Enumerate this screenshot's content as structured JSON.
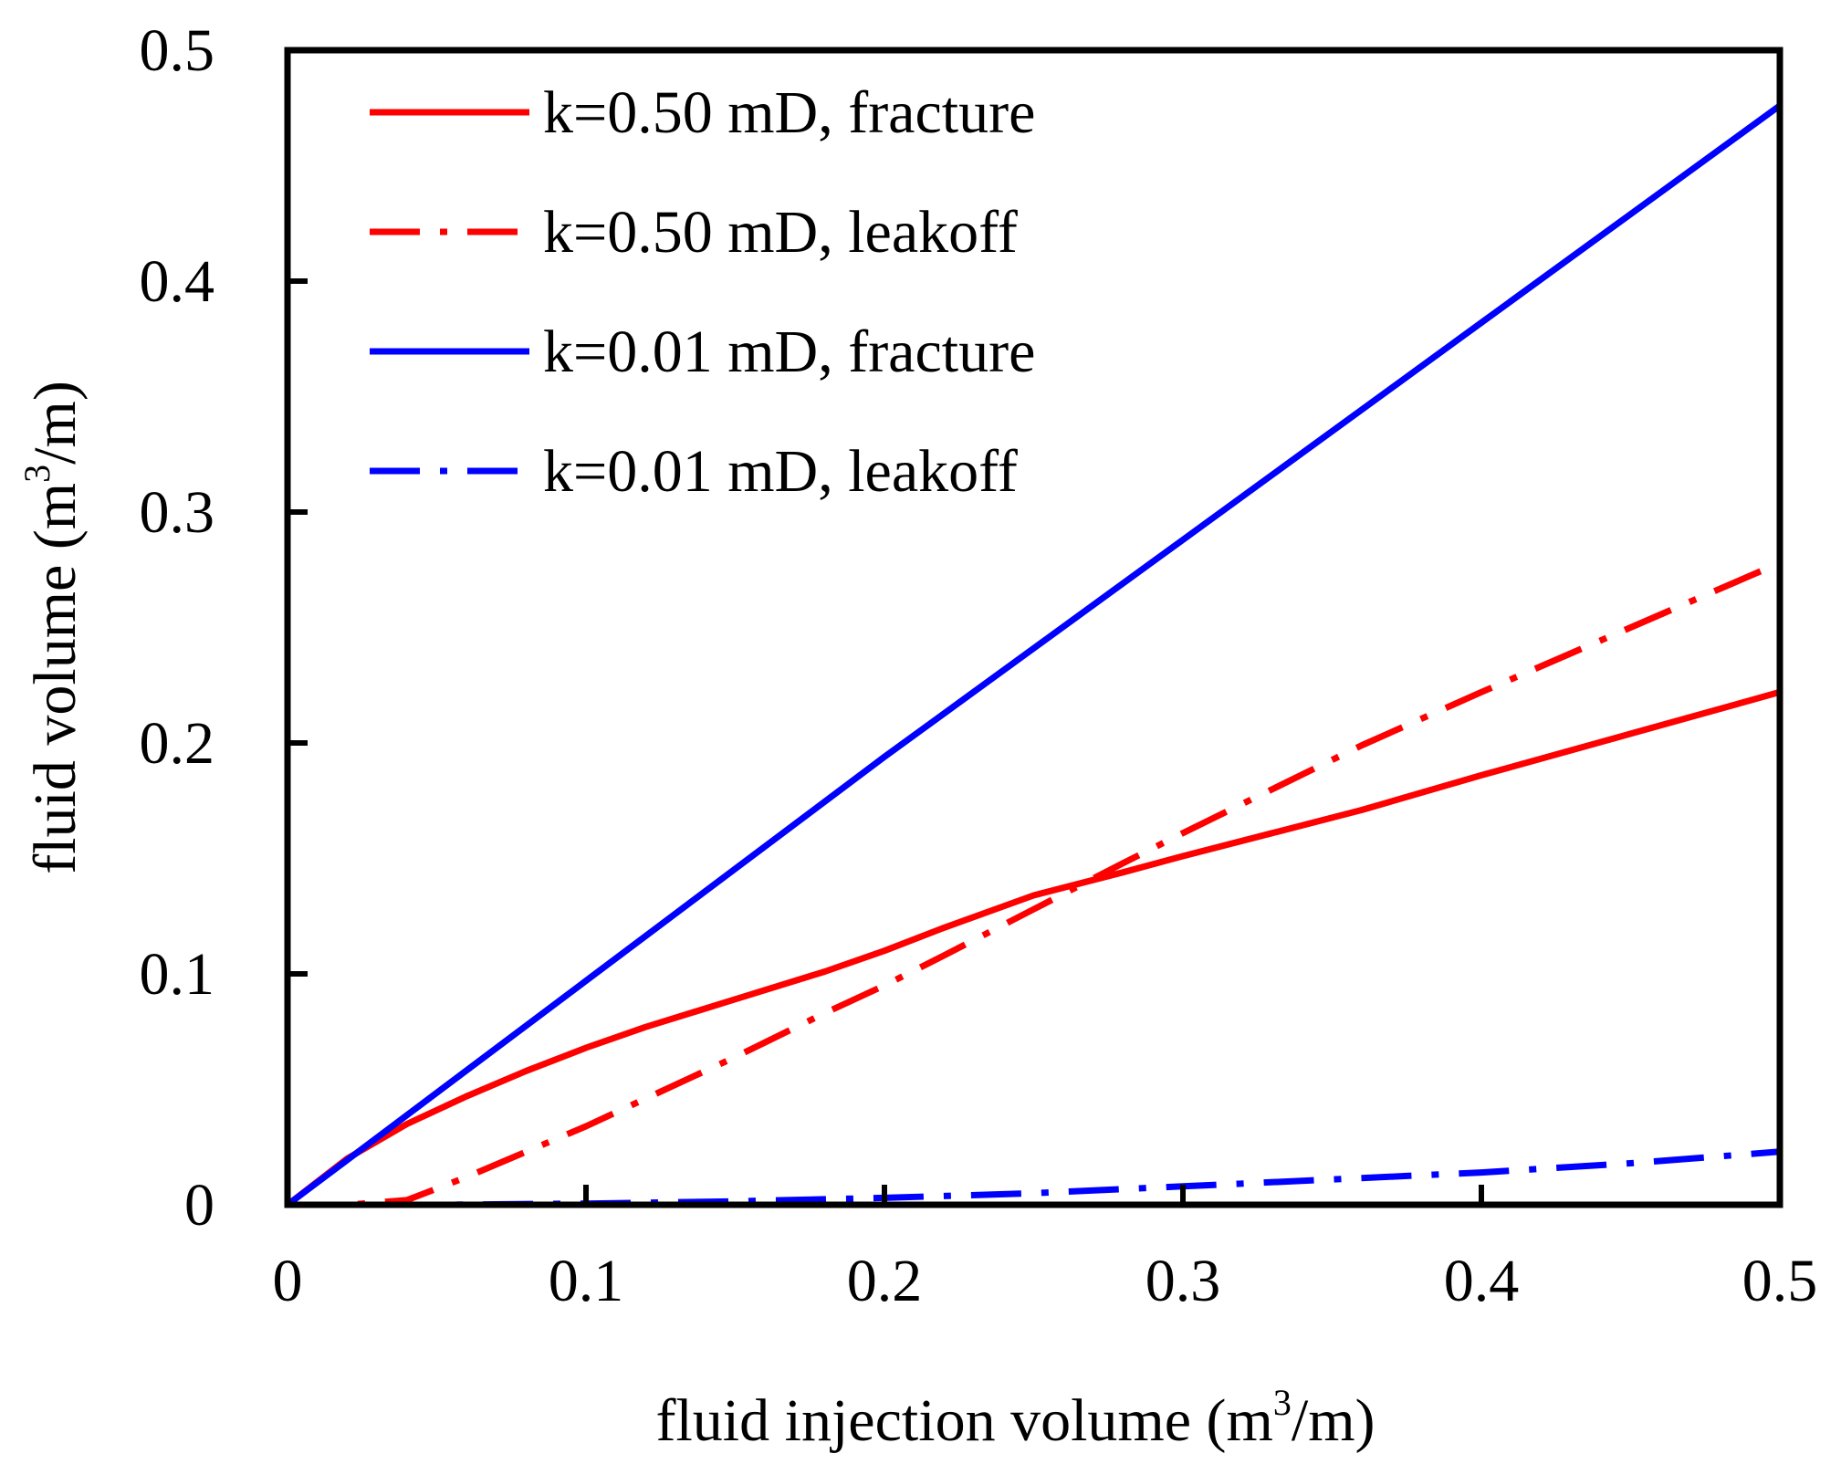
{
  "chart_data": {
    "type": "line",
    "xlabel": "fluid injection volume (m3/m)",
    "xlabel_parts": {
      "pre": "fluid injection volume (m",
      "sup": "3",
      "post": "/m)"
    },
    "ylabel": "fluid volume (m3/m)",
    "ylabel_parts": {
      "pre": "fluid volume (m",
      "sup": "3",
      "post": "/m)"
    },
    "xlim": [
      0,
      0.5
    ],
    "ylim": [
      0,
      0.5
    ],
    "x_ticks": [
      0,
      0.1,
      0.2,
      0.3,
      0.4,
      0.5
    ],
    "x_tick_labels": [
      "0",
      "0.1",
      "0.2",
      "0.3",
      "0.4",
      "0.5"
    ],
    "y_ticks": [
      0,
      0.1,
      0.2,
      0.3,
      0.4,
      0.5
    ],
    "y_tick_labels": [
      "0",
      "0.1",
      "0.2",
      "0.3",
      "0.4",
      "0.5"
    ],
    "grid": false,
    "legend_position": "top-left",
    "series": [
      {
        "name": "k=0.50 mD, fracture",
        "color": "#ff0000",
        "dash": "solid",
        "x": [
          0,
          0.02,
          0.04,
          0.06,
          0.08,
          0.1,
          0.12,
          0.15,
          0.18,
          0.2,
          0.22,
          0.25,
          0.28,
          0.3,
          0.33,
          0.36,
          0.4,
          0.45,
          0.5
        ],
        "y": [
          0,
          0.02,
          0.035,
          0.047,
          0.058,
          0.068,
          0.077,
          0.089,
          0.101,
          0.11,
          0.12,
          0.134,
          0.144,
          0.151,
          0.161,
          0.171,
          0.186,
          0.204,
          0.222
        ]
      },
      {
        "name": "k=0.50 mD, leakoff",
        "color": "#ff0000",
        "dash": "dashdot",
        "x": [
          0,
          0.02,
          0.04,
          0.06,
          0.08,
          0.1,
          0.12,
          0.15,
          0.18,
          0.2,
          0.22,
          0.25,
          0.28,
          0.3,
          0.33,
          0.36,
          0.4,
          0.45,
          0.5
        ],
        "y": [
          0,
          0.0,
          0.002,
          0.012,
          0.023,
          0.034,
          0.046,
          0.064,
          0.083,
          0.095,
          0.108,
          0.128,
          0.148,
          0.161,
          0.18,
          0.199,
          0.222,
          0.25,
          0.278
        ]
      },
      {
        "name": "k=0.01 mD, fracture",
        "color": "#0000ff",
        "dash": "solid",
        "x": [
          0,
          0.1,
          0.2,
          0.3,
          0.4,
          0.5
        ],
        "y": [
          0,
          0.097,
          0.194,
          0.288,
          0.382,
          0.476
        ]
      },
      {
        "name": "k=0.01 mD, leakoff",
        "color": "#0000ff",
        "dash": "dashdot",
        "x": [
          0,
          0.05,
          0.1,
          0.15,
          0.2,
          0.25,
          0.3,
          0.35,
          0.4,
          0.45,
          0.5
        ],
        "y": [
          0,
          0.0,
          0.0005,
          0.0015,
          0.003,
          0.005,
          0.008,
          0.011,
          0.014,
          0.018,
          0.023
        ]
      }
    ]
  }
}
